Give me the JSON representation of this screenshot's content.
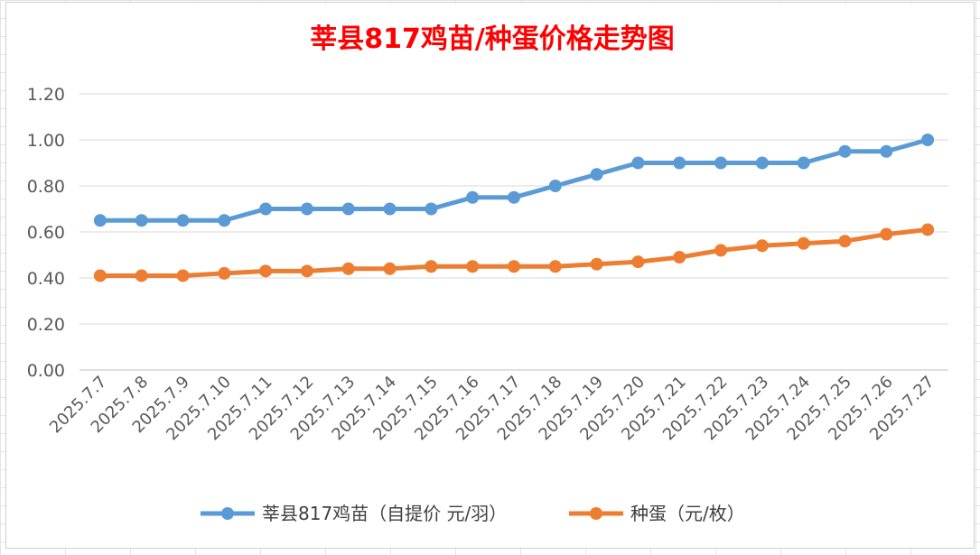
{
  "chart_data": {
    "type": "line",
    "title": "莘县817鸡苗/种蛋价格走势图",
    "xlabel": "",
    "ylabel": "",
    "ylim": [
      0,
      1.2
    ],
    "yticks": [
      "0.00",
      "0.20",
      "0.40",
      "0.60",
      "0.80",
      "1.00",
      "1.20"
    ],
    "grid": true,
    "legend_position": "bottom",
    "categories": [
      "2025.7.7",
      "2025.7.8",
      "2025.7.9",
      "2025.7.10",
      "2025.7.11",
      "2025.7.12",
      "2025.7.13",
      "2025.7.14",
      "2025.7.15",
      "2025.7.16",
      "2025.7.17",
      "2025.7.18",
      "2025.7.19",
      "2025.7.20",
      "2025.7.21",
      "2025.7.22",
      "2025.7.23",
      "2025.7.24",
      "2025.7.25",
      "2025.7.26",
      "2025.7.27"
    ],
    "series": [
      {
        "name": "莘县817鸡苗（自提价 元/羽）",
        "color": "#5b9bd5",
        "values": [
          0.65,
          0.65,
          0.65,
          0.65,
          0.7,
          0.7,
          0.7,
          0.7,
          0.7,
          0.75,
          0.75,
          0.8,
          0.85,
          0.9,
          0.9,
          0.9,
          0.9,
          0.9,
          0.95,
          0.95,
          1.0
        ]
      },
      {
        "name": "种蛋（元/枚）",
        "color": "#ed7d31",
        "values": [
          0.41,
          0.41,
          0.41,
          0.42,
          0.43,
          0.43,
          0.44,
          0.44,
          0.45,
          0.45,
          0.45,
          0.45,
          0.46,
          0.47,
          0.49,
          0.52,
          0.54,
          0.55,
          0.56,
          0.59,
          0.61
        ]
      }
    ]
  }
}
